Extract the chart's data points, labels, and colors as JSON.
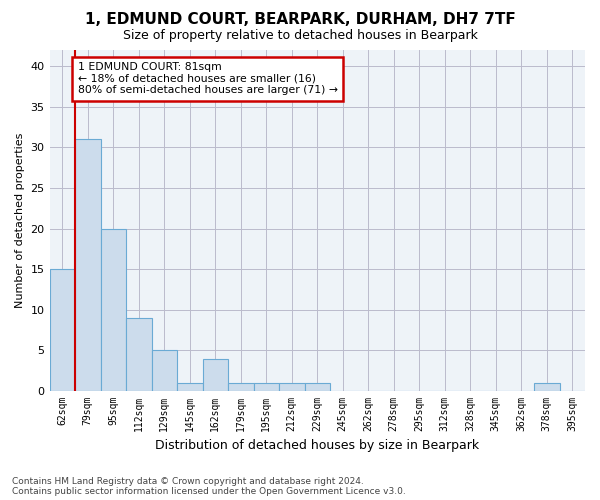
{
  "title": "1, EDMUND COURT, BEARPARK, DURHAM, DH7 7TF",
  "subtitle": "Size of property relative to detached houses in Bearpark",
  "xlabel": "Distribution of detached houses by size in Bearpark",
  "ylabel": "Number of detached properties",
  "bar_color": "#ccdcec",
  "bar_edge_color": "#6aaad4",
  "bins": [
    "62sqm",
    "79sqm",
    "95sqm",
    "112sqm",
    "129sqm",
    "145sqm",
    "162sqm",
    "179sqm",
    "195sqm",
    "212sqm",
    "229sqm",
    "245sqm",
    "262sqm",
    "278sqm",
    "295sqm",
    "312sqm",
    "328sqm",
    "345sqm",
    "362sqm",
    "378sqm",
    "395sqm"
  ],
  "values": [
    15,
    31,
    20,
    9,
    5,
    1,
    4,
    1,
    1,
    1,
    1,
    0,
    0,
    0,
    0,
    0,
    0,
    0,
    0,
    1,
    0
  ],
  "ylim": [
    0,
    42
  ],
  "yticks": [
    0,
    5,
    10,
    15,
    20,
    25,
    30,
    35,
    40
  ],
  "annotation_text": "1 EDMUND COURT: 81sqm\n← 18% of detached houses are smaller (16)\n80% of semi-detached houses are larger (71) →",
  "annotation_box_color": "#ffffff",
  "annotation_border_color": "#cc0000",
  "red_line_color": "#cc0000",
  "footer_line1": "Contains HM Land Registry data © Crown copyright and database right 2024.",
  "footer_line2": "Contains public sector information licensed under the Open Government Licence v3.0.",
  "background_color": "#ffffff",
  "plot_bg_color": "#eef3f8",
  "grid_color": "#bbbbcc"
}
